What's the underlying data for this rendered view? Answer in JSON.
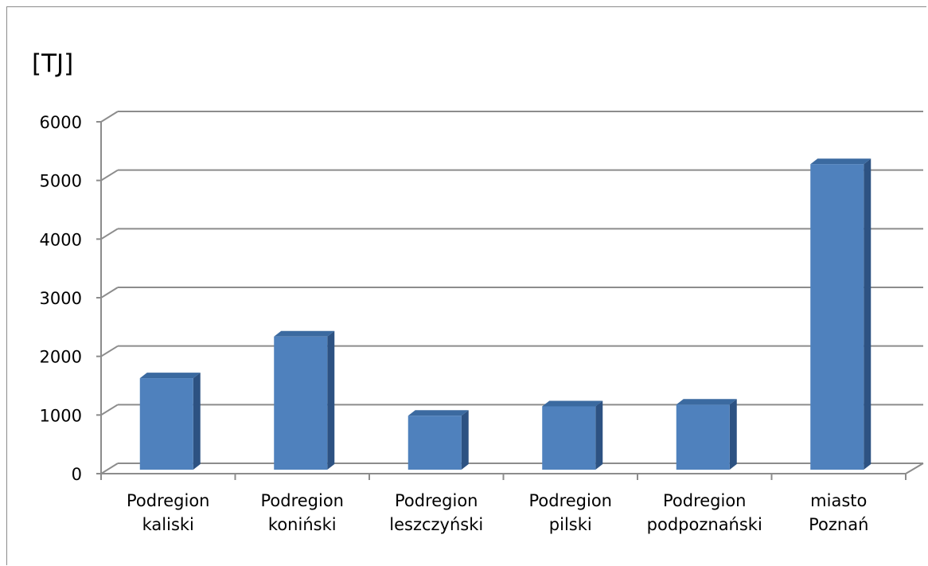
{
  "chart_data": {
    "type": "bar",
    "unit_label": "[TJ]",
    "categories": [
      [
        "Podregion",
        "kaliski"
      ],
      [
        "Podregion",
        "koniński"
      ],
      [
        "Podregion",
        "leszczyński"
      ],
      [
        "Podregion",
        "pilski"
      ],
      [
        "Podregion",
        "podpoznański"
      ],
      [
        "miasto",
        "Poznań"
      ]
    ],
    "values": [
      1560,
      2270,
      920,
      1080,
      1110,
      5210
    ],
    "ylim": [
      0,
      6000
    ],
    "yticks": [
      0,
      1000,
      2000,
      3000,
      4000,
      5000,
      6000
    ],
    "grid": true,
    "style": "3d-column",
    "colors": {
      "bar_front": "#4f81bd",
      "bar_side": "#2d5282",
      "bar_top": "#3b6aa0",
      "grid": "#8c8c8c"
    }
  }
}
